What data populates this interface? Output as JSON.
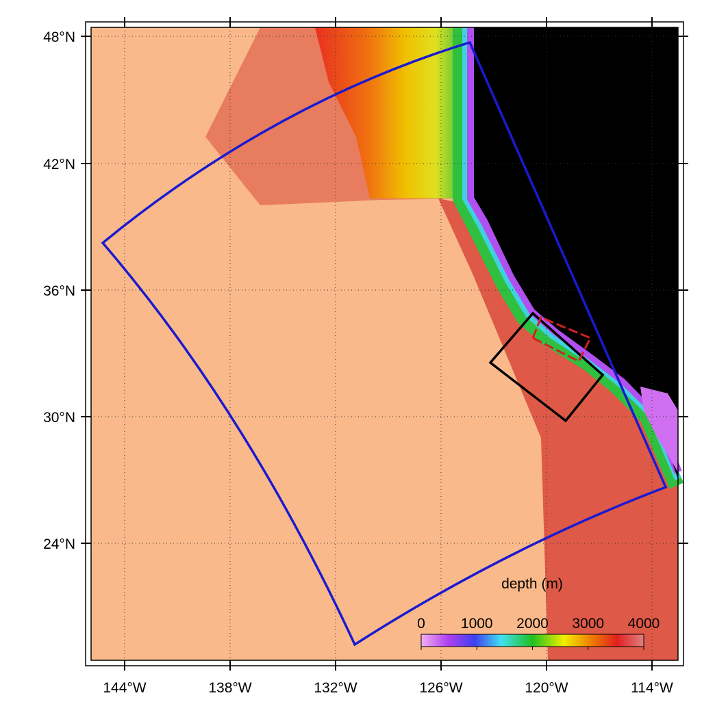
{
  "map": {
    "lat_labels": [
      "48°N",
      "42°N",
      "36°N",
      "30°N",
      "24°N"
    ],
    "lon_labels": [
      "144°W",
      "138°W",
      "132°W",
      "126°W",
      "120°W",
      "114°W"
    ],
    "colorbar": {
      "label": "depth (m)",
      "range": [
        0,
        4000
      ],
      "ticks": [
        0,
        1000,
        2000,
        3000,
        4000
      ]
    }
  }
}
